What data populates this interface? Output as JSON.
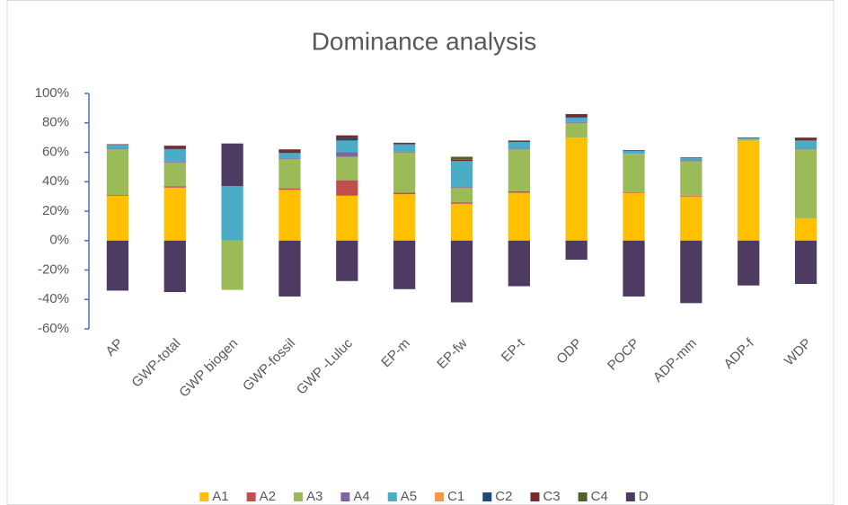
{
  "chart_data": {
    "type": "stacked_bar",
    "title": "Dominance analysis",
    "categories": [
      "AP",
      "GWP-total",
      "GWP biogen",
      "GWP-fossil",
      "GWP -Luluc",
      "EP-m",
      "EP-fw",
      "EP-t",
      "ODP",
      "POCP",
      "ADP-mm",
      "ADP-f",
      "WDP"
    ],
    "series": [
      {
        "name": "A1",
        "color": "#FFC000",
        "values": [
          30.5,
          36,
          0,
          34.5,
          30.5,
          31.5,
          25,
          32.5,
          70,
          32.5,
          30,
          68,
          15
        ]
      },
      {
        "name": "A2",
        "color": "#C0504D",
        "values": [
          0.5,
          1,
          0,
          1,
          10.5,
          1,
          1,
          1,
          0,
          0.5,
          0.5,
          0,
          0
        ]
      },
      {
        "name": "A3",
        "color": "#9BBB59",
        "values": [
          31,
          16,
          -33.5,
          20,
          16,
          27.5,
          10,
          28.5,
          10,
          26,
          23.5,
          1,
          47
        ]
      },
      {
        "name": "A4",
        "color": "#8064A2",
        "values": [
          0.5,
          0.5,
          0,
          0.5,
          3,
          0.5,
          0.5,
          0.5,
          0.5,
          0,
          0.5,
          0,
          0.5
        ]
      },
      {
        "name": "A5",
        "color": "#4BACC6",
        "values": [
          2.5,
          8.5,
          37,
          3.5,
          8,
          5,
          17.5,
          4.5,
          3,
          2,
          1.5,
          0.5,
          5.5
        ]
      },
      {
        "name": "C1",
        "color": "#F79646",
        "values": [
          0,
          0,
          0,
          0,
          0,
          0,
          0,
          0,
          0,
          0,
          0,
          0,
          0
        ]
      },
      {
        "name": "C2",
        "color": "#1F497D",
        "values": [
          0,
          0.5,
          0,
          0.5,
          1.5,
          0,
          0,
          0,
          0.5,
          0,
          0,
          0,
          0
        ]
      },
      {
        "name": "C3",
        "color": "#772C2A",
        "values": [
          0.5,
          2,
          0,
          2,
          2,
          1,
          1,
          1,
          2,
          0.5,
          0.5,
          0.5,
          2
        ]
      },
      {
        "name": "C4",
        "color": "#4F6228",
        "values": [
          0,
          0,
          0,
          0,
          0,
          0,
          2,
          0,
          0,
          0,
          0,
          0,
          0
        ]
      },
      {
        "name": "D",
        "color": "#4E3B62",
        "values": [
          -34,
          -35,
          29,
          -38,
          -27.5,
          -33,
          -42,
          -31,
          -13,
          -38,
          -42.5,
          -30.5,
          -29.5
        ]
      }
    ],
    "ylim": [
      -60,
      100
    ],
    "yticks": [
      {
        "value": -60,
        "label": "-60%"
      },
      {
        "value": -40,
        "label": "-40%"
      },
      {
        "value": -20,
        "label": "-20%"
      },
      {
        "value": 0,
        "label": "0%"
      },
      {
        "value": 20,
        "label": "20%"
      },
      {
        "value": 40,
        "label": "40%"
      },
      {
        "value": 60,
        "label": "60%"
      },
      {
        "value": 80,
        "label": "80%"
      },
      {
        "value": 100,
        "label": "100%"
      }
    ],
    "legend": "bottom"
  }
}
